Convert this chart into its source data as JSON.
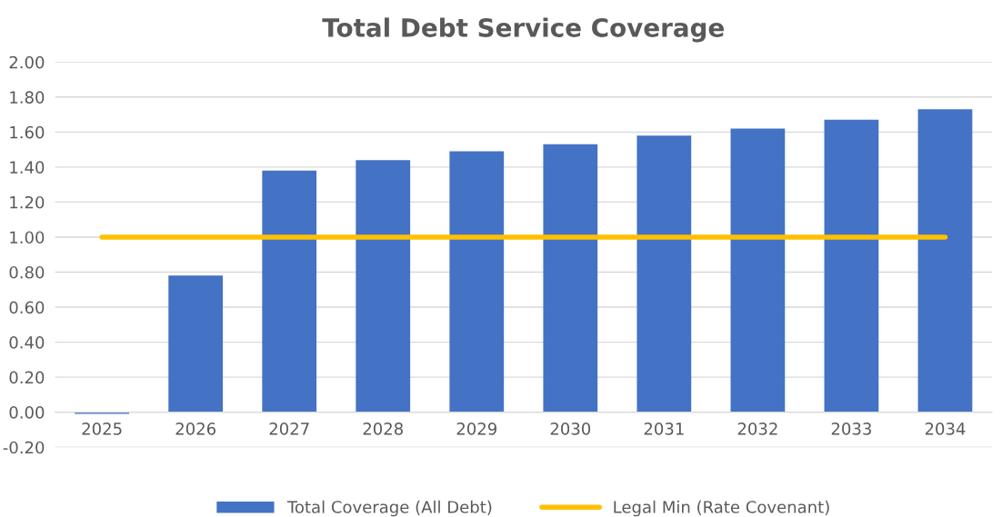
{
  "chart_data": {
    "type": "bar",
    "title": "Total Debt Service Coverage",
    "categories": [
      "2025",
      "2026",
      "2027",
      "2028",
      "2029",
      "2030",
      "2031",
      "2032",
      "2033",
      "2034"
    ],
    "series": [
      {
        "name": "Total Coverage (All Debt)",
        "color": "#4472c4",
        "values": [
          -0.01,
          0.78,
          1.38,
          1.44,
          1.49,
          1.53,
          1.58,
          1.62,
          1.67,
          1.73
        ]
      },
      {
        "name": "Legal Min (Rate Covenant)",
        "type": "line",
        "color": "#ffc000",
        "values": [
          1.0,
          1.0,
          1.0,
          1.0,
          1.0,
          1.0,
          1.0,
          1.0,
          1.0,
          1.0
        ]
      }
    ],
    "ylim": [
      -0.2,
      2.0
    ],
    "yticks": [
      {
        "value": -0.2,
        "label": "-0.20"
      },
      {
        "value": 0,
        "label": "0.00"
      },
      {
        "value": 0.2,
        "label": "0.20"
      },
      {
        "value": 0.4,
        "label": "0.40"
      },
      {
        "value": 0.6,
        "label": "0.60"
      },
      {
        "value": 0.8,
        "label": "0.80"
      },
      {
        "value": 1.0,
        "label": "1.00"
      },
      {
        "value": 1.2,
        "label": "1.20"
      },
      {
        "value": 1.4,
        "label": "1.40"
      },
      {
        "value": 1.6,
        "label": "1.60"
      },
      {
        "value": 1.8,
        "label": "1.80"
      },
      {
        "value": 2.0,
        "label": "2.00"
      }
    ],
    "grid": "y",
    "legend": "bottom",
    "marker": "none",
    "line_style": "solid"
  }
}
